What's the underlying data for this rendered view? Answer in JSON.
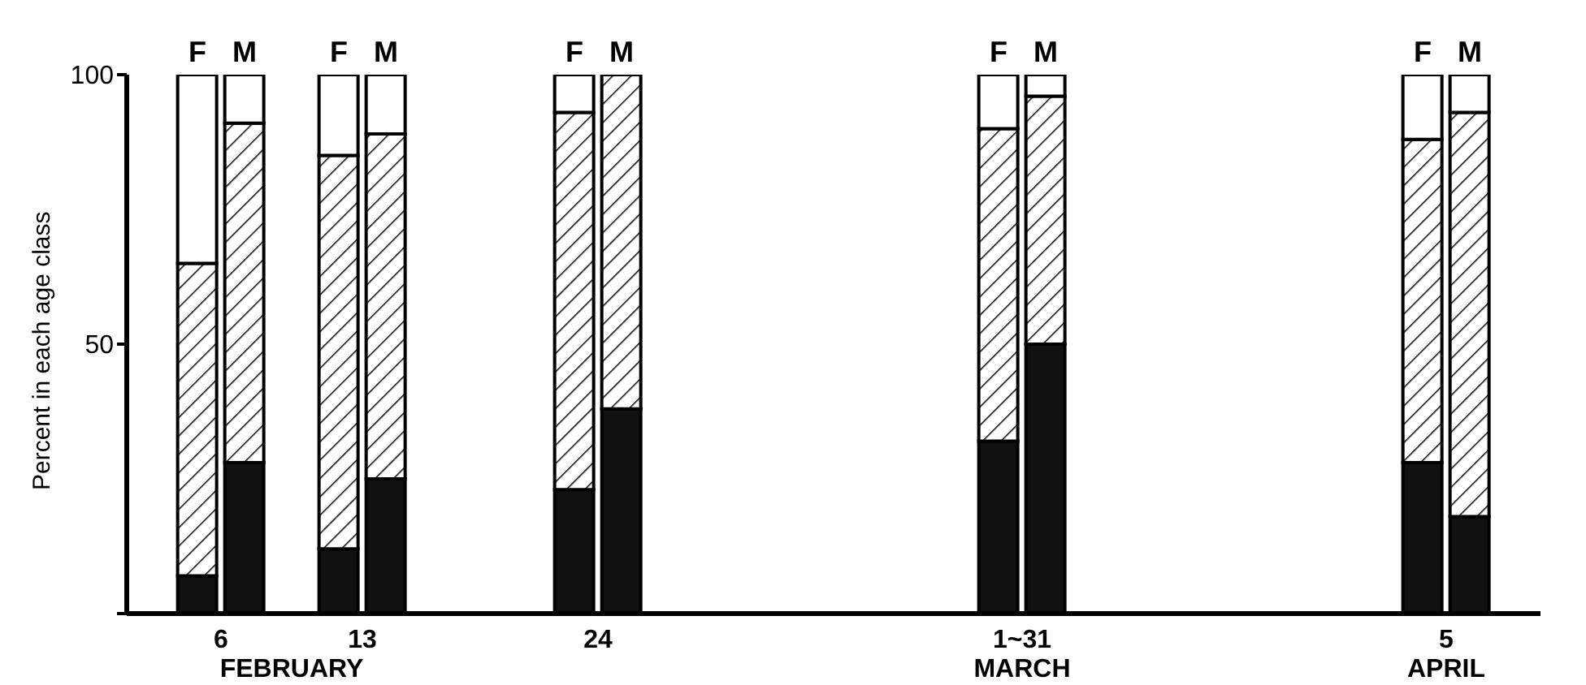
{
  "chart_data": {
    "type": "bar",
    "stacked": true,
    "ylabel": "Percent in each age class",
    "categories": [
      null,
      "F",
      "M",
      null,
      "F",
      "M",
      null,
      null,
      null,
      "F",
      "M",
      null,
      null,
      null,
      null,
      null,
      null,
      null,
      "F",
      "M",
      null,
      null,
      null,
      null,
      null,
      null,
      null,
      "F",
      "M",
      null
    ],
    "series": [
      {
        "color": "#111111",
        "values": [
          null,
          7,
          28,
          null,
          12,
          25,
          null,
          null,
          null,
          23,
          38,
          null,
          null,
          null,
          null,
          null,
          null,
          null,
          32,
          50,
          null,
          null,
          null,
          null,
          null,
          null,
          null,
          28,
          18,
          null
        ]
      },
      {
        "color": "#000000",
        "values": [
          null,
          58,
          63,
          null,
          73,
          64,
          null,
          null,
          null,
          70,
          62,
          null,
          null,
          null,
          null,
          null,
          null,
          null,
          58,
          46,
          null,
          null,
          null,
          null,
          null,
          null,
          null,
          60,
          75,
          null
        ]
      },
      {
        "color": "#ffffff",
        "values": [
          null,
          35,
          9,
          null,
          15,
          11,
          null,
          null,
          null,
          7,
          0,
          null,
          null,
          null,
          null,
          null,
          null,
          null,
          10,
          4,
          null,
          null,
          null,
          null,
          null,
          null,
          null,
          12,
          7,
          null
        ]
      }
    ],
    "ylim": [
      0,
      100
    ],
    "yticks": [
      {
        "value": 0,
        "label": null
      },
      50,
      100
    ],
    "grid": false,
    "legend": false,
    "annotations": [
      "6",
      "13",
      "24",
      "1~31",
      "5",
      "FEBRUARY",
      "MARCH",
      "APRIL"
    ]
  }
}
